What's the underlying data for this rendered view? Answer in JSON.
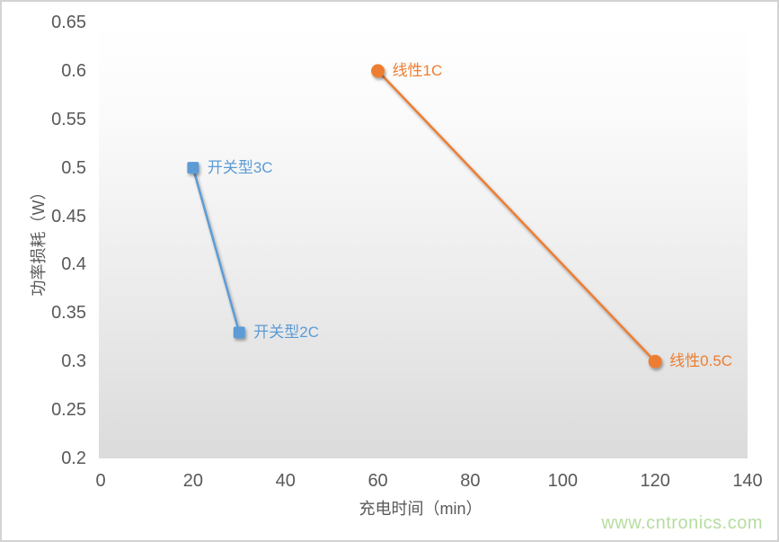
{
  "page": {
    "background": "#ffffff",
    "border_color": "#d3d3d3",
    "watermark": "www.cntronics.com",
    "watermark_color": "#b6dda1"
  },
  "chart_data": {
    "type": "line",
    "title": "",
    "xlabel": "充电时间（min）",
    "ylabel": "功率损耗（W）",
    "xlim": [
      0,
      140
    ],
    "ylim": [
      0.2,
      0.65
    ],
    "xticks": [
      0,
      20,
      40,
      60,
      80,
      100,
      120,
      140
    ],
    "xticklabels": [
      "0",
      "20",
      "40",
      "60",
      "80",
      "100",
      "120",
      "140"
    ],
    "yticks": [
      0.2,
      0.25,
      0.3,
      0.35,
      0.4,
      0.45,
      0.5,
      0.55,
      0.6,
      0.65
    ],
    "yticklabels": [
      "0.2",
      "0.25",
      "0.3",
      "0.35",
      "0.4",
      "0.45",
      "0.5",
      "0.55",
      "0.6",
      "0.65"
    ],
    "grid": false,
    "legend_position": "none",
    "axis_text_color": "#595959",
    "plot_bg_gradient": [
      "#ffffff",
      "#dbdbdb"
    ],
    "series": [
      {
        "name": "开关型",
        "color": "#5B9BD5",
        "marker": "square",
        "points": [
          {
            "x": 20,
            "y": 0.5,
            "label": "开关型3C"
          },
          {
            "x": 30,
            "y": 0.33,
            "label": "开关型2C"
          }
        ]
      },
      {
        "name": "线性",
        "color": "#ED7D31",
        "marker": "circle",
        "points": [
          {
            "x": 60,
            "y": 0.6,
            "label": "线性1C"
          },
          {
            "x": 120,
            "y": 0.3,
            "label": "线性0.5C"
          }
        ]
      }
    ]
  }
}
